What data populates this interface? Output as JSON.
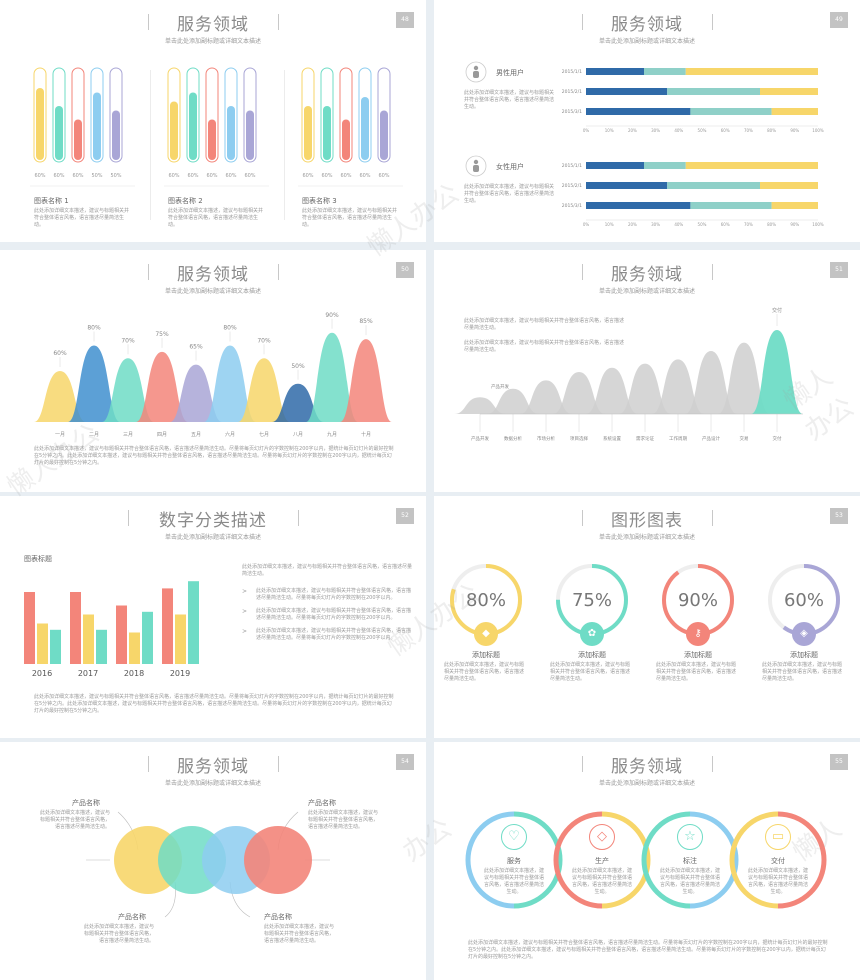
{
  "colors": {
    "yellow": "#f7d66a",
    "teal": "#6fdcc6",
    "red": "#f3857a",
    "blue": "#8dcdf0",
    "purple": "#a9a6d6",
    "navy": "#2f6aa8",
    "gray": "#d0d0d0"
  },
  "common": {
    "title": "服务领域",
    "sub": "单击此处添加副标题或详细文本描述",
    "lorem_short": "此处添加详细文本描述，建议与标题相关并符合整体语言风格，语言描述尽量简洁生动。",
    "lorem_long": "此处添加详细文本描述，建议与标题相关并符合整体语言风格，语言描述尽量简洁生动。尽量将每页幻灯片的字数控制在200字以内，据统计每页幻灯片的最好控制在5分钟之内。此处添加详细文本描述，建议与标题相关并符合整体语言风格，语言描述尽量简洁生动。尽量将每页幻灯片的字数控制在200字以内，据统计每页幻灯片的最好控制在5分钟之内。"
  },
  "slides": {
    "s48": {
      "num": "48",
      "groups": [
        {
          "name": "图表名称 1",
          "levels": [
            0.8,
            0.6,
            0.45,
            0.75,
            0.55
          ],
          "pct": [
            "60%",
            "60%",
            "60%",
            "50%",
            "50%"
          ]
        },
        {
          "name": "图表名称 2",
          "levels": [
            0.65,
            0.75,
            0.45,
            0.6,
            0.55
          ],
          "pct": [
            "60%",
            "60%",
            "60%",
            "60%",
            "60%"
          ]
        },
        {
          "name": "图表名称 3",
          "levels": [
            0.6,
            0.6,
            0.45,
            0.7,
            0.55
          ],
          "pct": [
            "60%",
            "60%",
            "60%",
            "60%",
            "60%"
          ]
        }
      ]
    },
    "s49": {
      "num": "49",
      "male": "男性用户",
      "female": "女性用户",
      "rows": [
        "2015/1/1",
        "2015/2/1",
        "2015/3/1"
      ],
      "ticks": [
        "0%",
        "10%",
        "20%",
        "30%",
        "40%",
        "50%",
        "60%",
        "70%",
        "80%",
        "90%",
        "100%"
      ],
      "chart_data": [
        {
          "type": "bar",
          "orientation": "horizontal",
          "stacked": true,
          "categories": [
            "2015/1/1",
            "2015/2/1",
            "2015/3/1"
          ],
          "series": [
            {
              "values": [
                25,
                35,
                45
              ]
            },
            {
              "values": [
                18,
                40,
                35
              ]
            },
            {
              "values": [
                57,
                25,
                20
              ]
            }
          ]
        },
        {
          "type": "bar",
          "orientation": "horizontal",
          "stacked": true,
          "categories": [
            "2015/1/1",
            "2015/2/1",
            "2015/3/1"
          ],
          "series": [
            {
              "values": [
                25,
                35,
                45
              ]
            },
            {
              "values": [
                18,
                40,
                35
              ]
            },
            {
              "values": [
                57,
                25,
                20
              ]
            }
          ]
        }
      ]
    },
    "s50": {
      "num": "50",
      "chart_data": {
        "type": "area",
        "categories": [
          "一月",
          "二月",
          "三月",
          "四月",
          "五月",
          "六月",
          "七月",
          "八月",
          "九月",
          "十月"
        ],
        "values": [
          60,
          80,
          70,
          75,
          65,
          80,
          70,
          50,
          90,
          85
        ],
        "labels": [
          "60%",
          "80%",
          "70%",
          "75%",
          "65%",
          "80%",
          "70%",
          "50%",
          "90%",
          "85%"
        ]
      }
    },
    "s51": {
      "num": "51",
      "top_label": "交付",
      "first_label": "产品开发",
      "categories": [
        "产品开发",
        "数据分析",
        "市场分析",
        "项目选择",
        "系统设置",
        "需求论证",
        "工作周期",
        "产品设计",
        "交易",
        "交付"
      ],
      "heights": [
        0.2,
        0.3,
        0.4,
        0.5,
        0.55,
        0.6,
        0.65,
        0.75,
        0.85,
        1.0
      ]
    },
    "s52": {
      "num": "52",
      "title": "数字分类描述",
      "chart_title": "图表标题",
      "chart_data": {
        "type": "bar",
        "categories": [
          "2016",
          "2017",
          "2018",
          "2019"
        ],
        "series": [
          {
            "values": [
              80,
              80,
              65,
              84
            ]
          },
          {
            "values": [
              45,
              55,
              35,
              55
            ]
          },
          {
            "values": [
              38,
              38,
              58,
              92
            ]
          }
        ]
      },
      "bullets": [
        "此处添加详细文本描述，建议与标题相关并符合整体语言风格，语言描述尽量简洁生动。尽量将每页幻灯片的字数控制在200字以内。",
        "此处添加详细文本描述，建议与标题相关并符合整体语言风格，语言描述尽量简洁生动。尽量将每页幻灯片的字数控制在200字以内。",
        "此处添加详细文本描述，建议与标题相关并符合整体语言风格，语言描述尽量简洁生动。尽量将每页幻灯片的字数控制在200字以内。"
      ]
    },
    "s53": {
      "num": "53",
      "title": "图形图表",
      "items": [
        {
          "pct": "80%",
          "value": 80,
          "label": "添加标题",
          "icon": "diamond-icon"
        },
        {
          "pct": "75%",
          "value": 75,
          "label": "添加标题",
          "icon": "gear-icon"
        },
        {
          "pct": "90%",
          "value": 90,
          "label": "添加标题",
          "icon": "key-icon"
        },
        {
          "pct": "60%",
          "value": 60,
          "label": "添加标题",
          "icon": "tag-icon"
        }
      ]
    },
    "s54": {
      "num": "54",
      "product": "产品名称"
    },
    "s55": {
      "num": "55",
      "items": [
        {
          "label": "服务",
          "icon": "heart-icon"
        },
        {
          "label": "生产",
          "icon": "diamond-icon"
        },
        {
          "label": "标注",
          "icon": "star-icon"
        },
        {
          "label": "交付",
          "icon": "truck-icon"
        }
      ]
    }
  }
}
